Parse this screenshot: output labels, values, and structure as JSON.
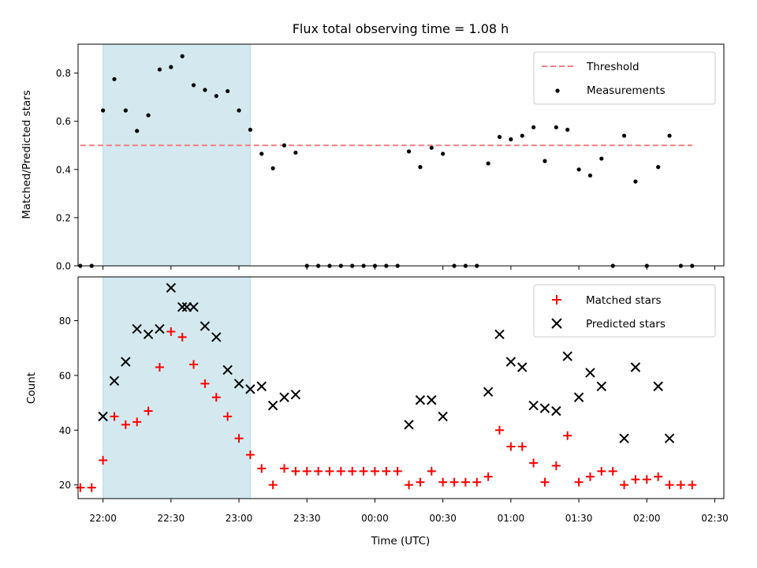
{
  "colors": {
    "observing_window": "#d3e9ef",
    "threshold": "#f57f7f",
    "measurements": "#000000",
    "matched": "#ff0000",
    "predicted": "#000000"
  },
  "chart_data": [
    {
      "type": "scatter",
      "title": "Flux total observing time = 1.08 h",
      "xlabel": "",
      "ylabel": "Matched/Predicted stars",
      "x_unit": "UTC time",
      "xlim": [
        "21:49",
        "02:34"
      ],
      "ylim": [
        0,
        0.92
      ],
      "y_ticks": [
        "0.0",
        "0.2",
        "0.4",
        "0.6",
        "0.8"
      ],
      "shaded_span": {
        "start": "22:00",
        "end": "23:05"
      },
      "legend_position": "top-right",
      "series": [
        {
          "name": "Threshold",
          "kind": "dashed-line",
          "x": [
            "21:50",
            "02:20"
          ],
          "y": [
            0.5,
            0.5
          ]
        },
        {
          "name": "Measurements",
          "kind": "points",
          "x": [
            "21:50",
            "21:55",
            "22:00",
            "22:05",
            "22:10",
            "22:15",
            "22:20",
            "22:25",
            "22:30",
            "22:35",
            "22:40",
            "22:45",
            "22:50",
            "22:55",
            "23:00",
            "23:05",
            "23:10",
            "23:15",
            "23:20",
            "23:25",
            "23:30",
            "23:35",
            "23:40",
            "23:45",
            "23:50",
            "23:55",
            "00:00",
            "00:05",
            "00:10",
            "00:15",
            "00:20",
            "00:25",
            "00:30",
            "00:35",
            "00:40",
            "00:45",
            "00:50",
            "00:55",
            "01:00",
            "01:05",
            "01:10",
            "01:15",
            "01:20",
            "01:25",
            "01:30",
            "01:35",
            "01:40",
            "01:45",
            "01:50",
            "01:55",
            "02:00",
            "02:05",
            "02:10",
            "02:15",
            "02:20"
          ],
          "y": [
            0,
            0,
            0.645,
            0.775,
            0.645,
            0.56,
            0.625,
            0.815,
            0.825,
            0.87,
            0.75,
            0.73,
            0.705,
            0.725,
            0.645,
            0.565,
            0.465,
            0.405,
            0.5,
            0.47,
            0,
            0,
            0,
            0,
            0,
            0,
            0,
            0,
            0,
            0.475,
            0.41,
            0.49,
            0.465,
            0,
            0,
            0,
            0.425,
            0.535,
            0.525,
            0.54,
            0.575,
            0.435,
            0.575,
            0.565,
            0.4,
            0.375,
            0.445,
            0,
            0.54,
            0.35,
            0,
            0.41,
            0.54,
            0,
            0
          ]
        }
      ]
    },
    {
      "type": "scatter",
      "title": "",
      "xlabel": "Time (UTC)",
      "ylabel": "Count",
      "x_unit": "UTC time",
      "xlim": [
        "21:49",
        "02:34"
      ],
      "ylim": [
        15,
        96
      ],
      "y_ticks": [
        "20",
        "40",
        "60",
        "80"
      ],
      "x_ticks": [
        "22:00",
        "22:30",
        "23:00",
        "23:30",
        "00:00",
        "00:30",
        "01:00",
        "01:30",
        "02:00",
        "02:30"
      ],
      "shaded_span": {
        "start": "22:00",
        "end": "23:05"
      },
      "legend_position": "top-right",
      "series": [
        {
          "name": "Matched stars",
          "marker": "plus",
          "x": [
            "21:50",
            "21:55",
            "22:00",
            "22:05",
            "22:10",
            "22:15",
            "22:20",
            "22:25",
            "22:30",
            "22:35",
            "22:40",
            "22:45",
            "22:50",
            "22:55",
            "23:00",
            "23:05",
            "23:10",
            "23:15",
            "23:20",
            "23:25",
            "23:30",
            "23:35",
            "23:40",
            "23:45",
            "23:50",
            "23:55",
            "00:00",
            "00:05",
            "00:10",
            "00:15",
            "00:20",
            "00:25",
            "00:30",
            "00:35",
            "00:40",
            "00:45",
            "00:50",
            "00:55",
            "01:00",
            "01:05",
            "01:10",
            "01:15",
            "01:20",
            "01:25",
            "01:30",
            "01:35",
            "01:40",
            "01:45",
            "01:50",
            "01:55",
            "02:00",
            "02:05",
            "02:10",
            "02:15",
            "02:20"
          ],
          "y": [
            19,
            19,
            29,
            45,
            42,
            43,
            47,
            63,
            76,
            74,
            64,
            57,
            52,
            45,
            37,
            31,
            26,
            20,
            26,
            25,
            25,
            25,
            25,
            25,
            25,
            25,
            25,
            25,
            25,
            20,
            21,
            25,
            21,
            21,
            21,
            21,
            23,
            40,
            34,
            34,
            28,
            21,
            27,
            38,
            21,
            23,
            25,
            25,
            20,
            22,
            22,
            23,
            20,
            20,
            20
          ]
        },
        {
          "name": "Predicted stars",
          "marker": "x",
          "x": [
            "22:00",
            "22:05",
            "22:10",
            "22:15",
            "22:20",
            "22:25",
            "22:30",
            "22:35",
            "22:37",
            "22:40",
            "22:45",
            "22:50",
            "22:55",
            "23:00",
            "23:05",
            "23:10",
            "23:15",
            "23:20",
            "23:25",
            "00:15",
            "00:20",
            "00:25",
            "00:30",
            "00:50",
            "00:55",
            "01:00",
            "01:05",
            "01:10",
            "01:15",
            "01:20",
            "01:25",
            "01:30",
            "01:35",
            "01:40",
            "01:50",
            "01:55",
            "02:05",
            "02:10"
          ],
          "y": [
            45,
            58,
            65,
            77,
            75,
            77,
            92,
            85,
            85,
            85,
            78,
            74,
            62,
            57,
            55,
            56,
            49,
            52,
            53,
            42,
            51,
            51,
            45,
            54,
            75,
            65,
            63,
            49,
            48,
            47,
            67,
            52,
            61,
            56,
            37,
            63,
            56,
            37
          ]
        }
      ]
    }
  ]
}
